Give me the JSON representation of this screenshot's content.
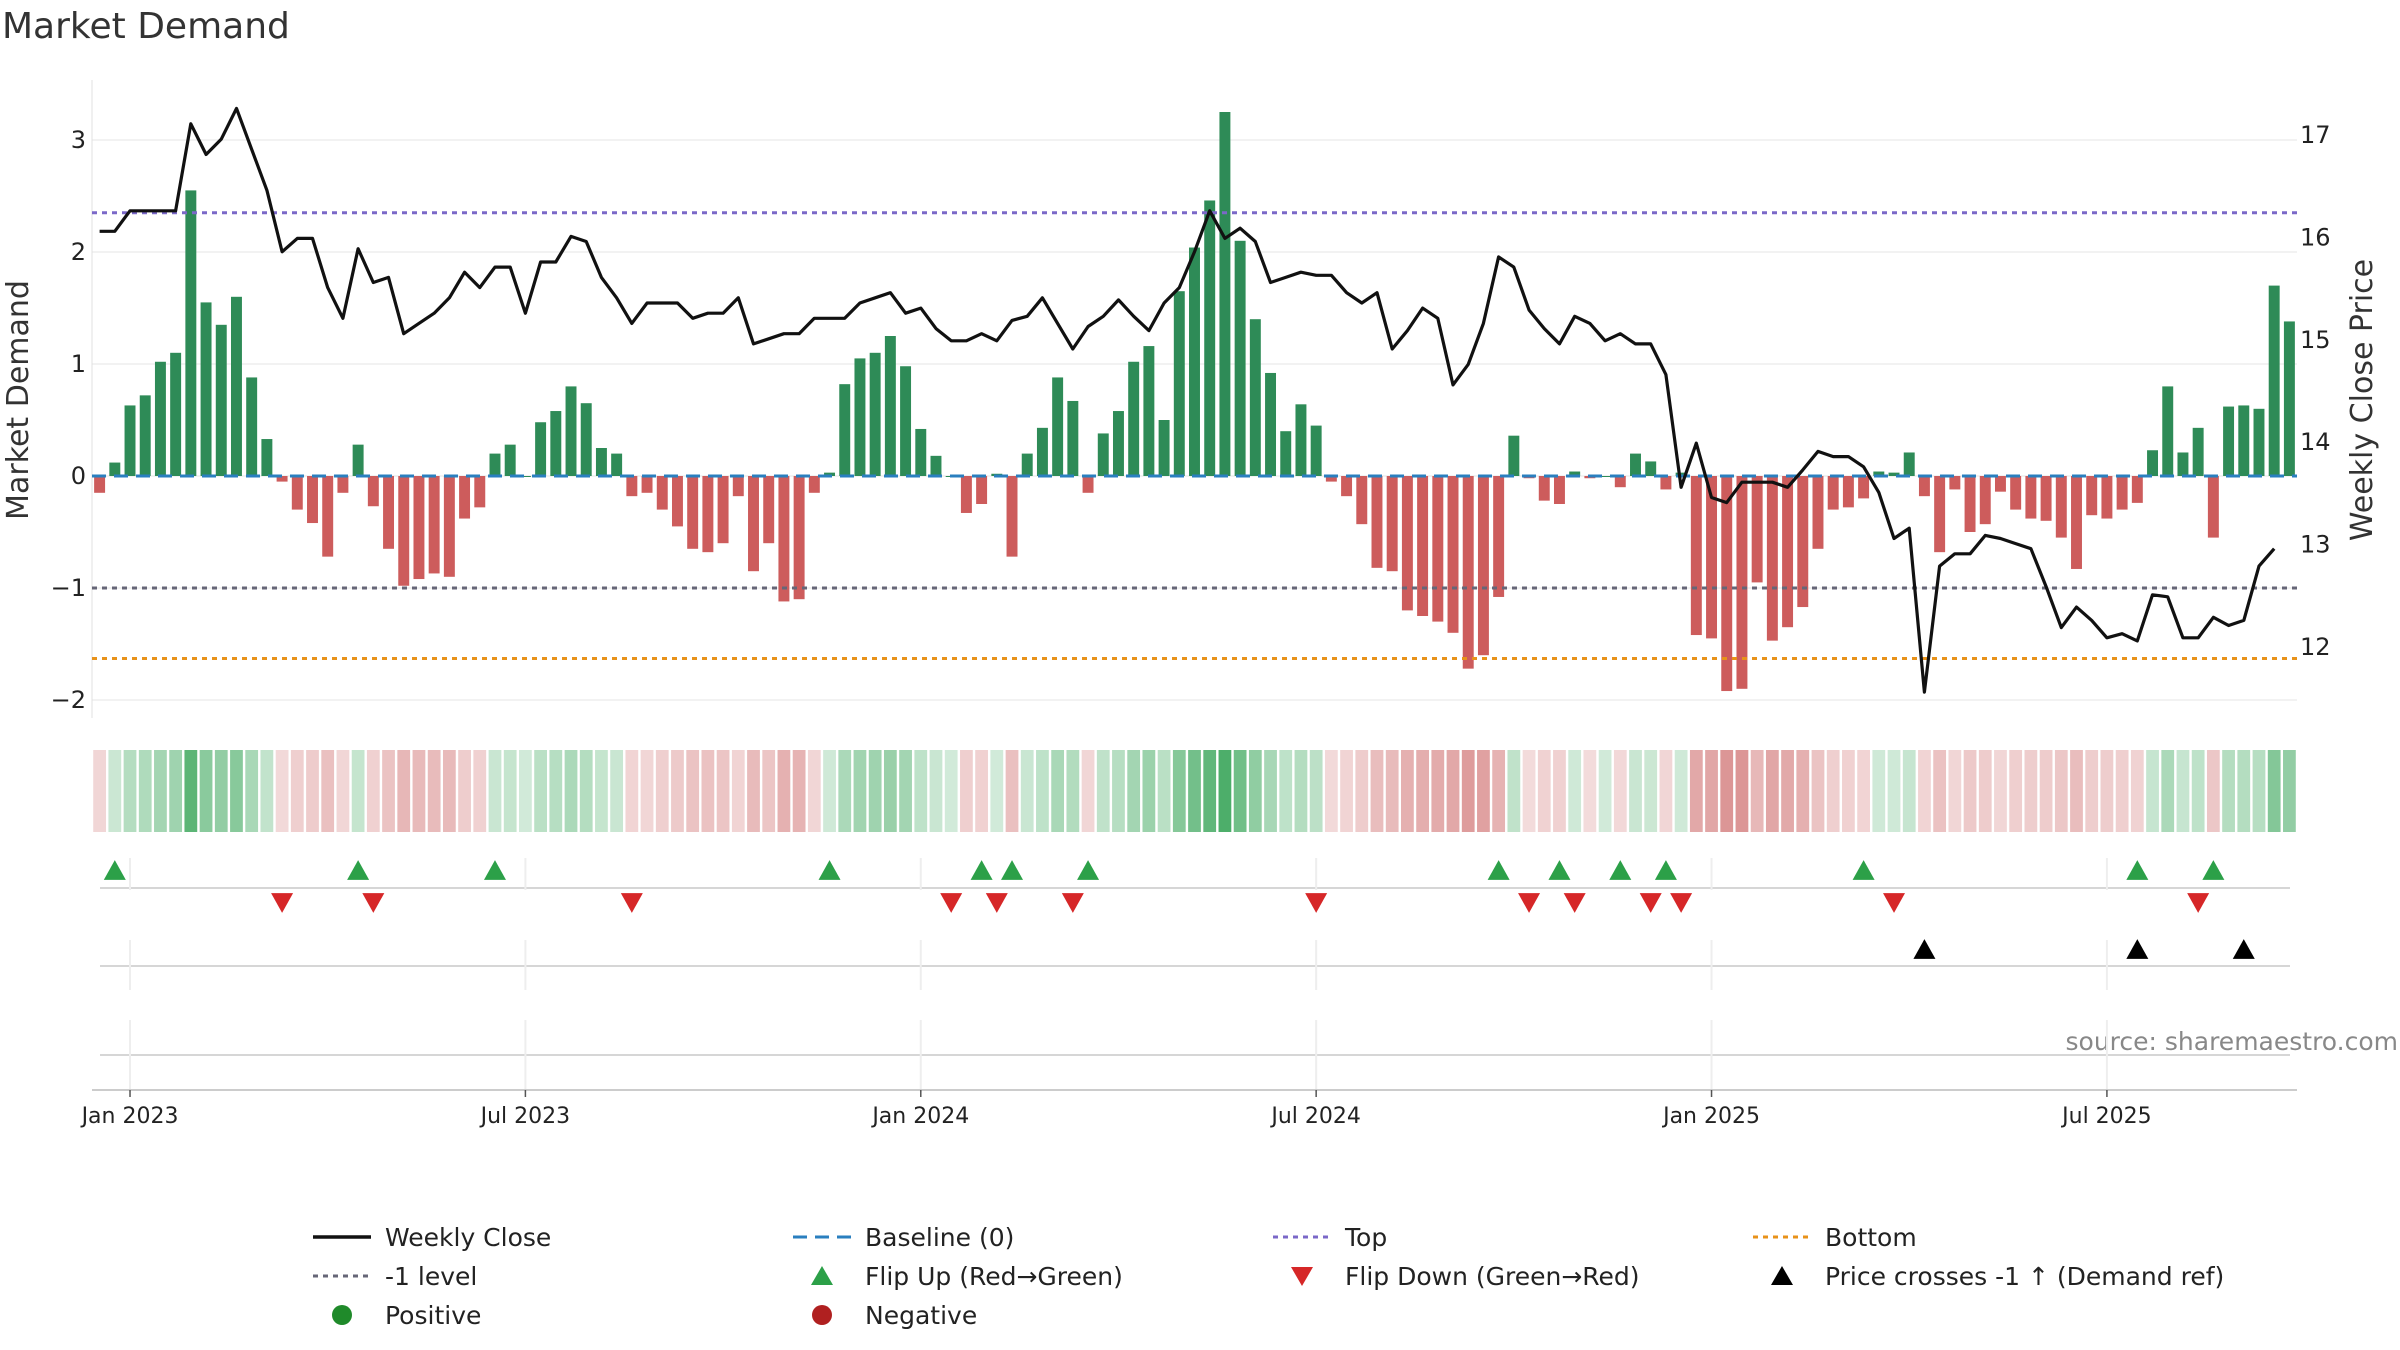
{
  "chart_data": {
    "type": "bar",
    "title": "Market Demand",
    "ylabel": "Market Demand",
    "y2label": "Weekly Close Price",
    "ylim": [
      -2.2,
      3.5
    ],
    "y2lim": [
      11.45,
      17.3
    ],
    "yticks": [
      {
        "v": 3,
        "label": "3"
      },
      {
        "v": 2,
        "label": "2"
      },
      {
        "v": 1,
        "label": "1"
      },
      {
        "v": 0,
        "label": "0"
      },
      {
        "v": -1,
        "label": "−1"
      },
      {
        "v": -2,
        "label": "−2"
      }
    ],
    "y2ticks": [
      {
        "v": 17,
        "label": "17"
      },
      {
        "v": 16,
        "label": "16"
      },
      {
        "v": 15,
        "label": "15"
      },
      {
        "v": 14,
        "label": "14"
      },
      {
        "v": 13,
        "label": "13"
      },
      {
        "v": 12,
        "label": "12"
      }
    ],
    "xticks": [
      {
        "i": 2,
        "label": "Jan 2023"
      },
      {
        "i": 28,
        "label": "Jul 2023"
      },
      {
        "i": 54,
        "label": "Jan 2024"
      },
      {
        "i": 80,
        "label": "Jul 2024"
      },
      {
        "i": 106,
        "label": "Jan 2025"
      },
      {
        "i": 132,
        "label": "Jul 2025"
      }
    ],
    "levels": {
      "top": 2.35,
      "bottom": -1.63,
      "minus_one": -1.0,
      "baseline": 0
    },
    "demand": [
      -0.15,
      0.12,
      0.63,
      0.72,
      1.02,
      1.1,
      2.55,
      1.55,
      1.35,
      1.6,
      0.88,
      0.33,
      -0.05,
      -0.3,
      -0.42,
      -0.72,
      -0.15,
      0.28,
      -0.27,
      -0.65,
      -0.98,
      -0.92,
      -0.87,
      -0.9,
      -0.38,
      -0.28,
      0.2,
      0.28,
      0.0,
      0.48,
      0.58,
      0.8,
      0.65,
      0.25,
      0.2,
      -0.18,
      -0.15,
      -0.3,
      -0.45,
      -0.65,
      -0.68,
      -0.6,
      -0.18,
      -0.85,
      -0.6,
      -1.12,
      -1.1,
      -0.15,
      0.03,
      0.82,
      1.05,
      1.1,
      1.25,
      0.98,
      0.42,
      0.18,
      0.0,
      -0.33,
      -0.25,
      0.02,
      -0.72,
      0.2,
      0.43,
      0.88,
      0.67,
      -0.15,
      0.38,
      0.58,
      1.02,
      1.16,
      0.5,
      1.65,
      2.04,
      2.46,
      3.25,
      2.1,
      1.4,
      0.92,
      0.4,
      0.64,
      0.45,
      -0.05,
      -0.18,
      -0.43,
      -0.82,
      -0.85,
      -1.2,
      -1.25,
      -1.3,
      -1.4,
      -1.72,
      -1.6,
      -1.08,
      0.36,
      -0.02,
      -0.22,
      -0.25,
      0.04,
      -0.02,
      0.0,
      -0.1,
      0.2,
      0.13,
      -0.12,
      0.03,
      -1.42,
      -1.45,
      -1.92,
      -1.9,
      -0.95,
      -1.47,
      -1.35,
      -1.17,
      -0.65,
      -0.3,
      -0.28,
      -0.2,
      0.04,
      0.03,
      0.21,
      -0.18,
      -0.68,
      -0.12,
      -0.5,
      -0.43,
      -0.14,
      -0.3,
      -0.38,
      -0.4,
      -0.55,
      -0.83,
      -0.35,
      -0.38,
      -0.3,
      -0.24,
      0.23,
      0.8,
      0.21,
      0.43,
      -0.55,
      0.62,
      0.63,
      0.6,
      1.7,
      1.38
    ],
    "close": [
      16.05,
      16.05,
      16.25,
      16.25,
      16.25,
      16.25,
      17.1,
      16.8,
      16.95,
      17.25,
      16.85,
      16.45,
      15.85,
      15.98,
      15.98,
      15.5,
      15.2,
      15.88,
      15.55,
      15.6,
      15.05,
      15.15,
      15.25,
      15.4,
      15.65,
      15.5,
      15.7,
      15.7,
      15.25,
      15.75,
      15.75,
      16.0,
      15.95,
      15.6,
      15.4,
      15.15,
      15.35,
      15.35,
      15.35,
      15.2,
      15.25,
      15.25,
      15.4,
      14.95,
      15.0,
      15.05,
      15.05,
      15.2,
      15.2,
      15.2,
      15.35,
      15.4,
      15.45,
      15.25,
      15.3,
      15.1,
      14.98,
      14.98,
      15.05,
      14.98,
      15.18,
      15.22,
      15.4,
      15.15,
      14.9,
      15.12,
      15.22,
      15.38,
      15.22,
      15.08,
      15.35,
      15.5,
      15.85,
      16.25,
      15.98,
      16.08,
      15.95,
      15.55,
      15.6,
      15.65,
      15.62,
      15.62,
      15.45,
      15.35,
      15.45,
      14.9,
      15.08,
      15.3,
      15.2,
      14.55,
      14.75,
      15.15,
      15.8,
      15.7,
      15.28,
      15.1,
      14.95,
      15.22,
      15.15,
      14.98,
      15.05,
      14.95,
      14.95,
      14.65,
      13.55,
      13.98,
      13.45,
      13.4,
      13.6,
      13.6,
      13.6,
      13.55,
      13.72,
      13.9,
      13.85,
      13.85,
      13.75,
      13.5,
      13.05,
      13.15,
      11.55,
      12.78,
      12.9,
      12.9,
      13.08,
      13.05,
      13.0,
      12.95,
      12.58,
      12.18,
      12.38,
      12.25,
      12.08,
      12.12,
      12.05,
      12.5,
      12.48,
      12.08,
      12.08,
      12.28,
      12.2,
      12.25,
      12.78,
      12.95
    ],
    "markers": {
      "flip_up": [
        1,
        17,
        26,
        48,
        58,
        60,
        65,
        92,
        96,
        100,
        103,
        116,
        134,
        139
      ],
      "flip_down": [
        12,
        18,
        35,
        56,
        59,
        64,
        80,
        94,
        97,
        102,
        104,
        118,
        138
      ],
      "price_cross": [
        120,
        134,
        141
      ]
    },
    "legend": [
      {
        "key": "close",
        "label": "Weekly Close"
      },
      {
        "key": "baseline",
        "label": "Baseline (0)"
      },
      {
        "key": "top",
        "label": "Top"
      },
      {
        "key": "bottom",
        "label": "Bottom"
      },
      {
        "key": "minus1",
        "label": "-1 level"
      },
      {
        "key": "flipup",
        "label": "Flip Up (Red→Green)"
      },
      {
        "key": "flipdown",
        "label": "Flip Down (Green→Red)"
      },
      {
        "key": "cross",
        "label": "Price crosses -1 ↑ (Demand ref)"
      },
      {
        "key": "pos",
        "label": "Positive"
      },
      {
        "key": "neg",
        "label": "Negative"
      }
    ],
    "source": "source: sharemaestro.com",
    "colors": {
      "pos_bar": "#2e8b57",
      "neg_bar": "#cd5c5c",
      "close": "#111111",
      "top": "#7b68c8",
      "bottom": "#e8921a",
      "minus_one": "#666677",
      "baseline": "#2a7fbf",
      "flip_up": "#2ca048",
      "flip_down": "#d62728",
      "cross": "#000000",
      "positive": "#1f8a2a",
      "negative": "#b02020"
    }
  }
}
